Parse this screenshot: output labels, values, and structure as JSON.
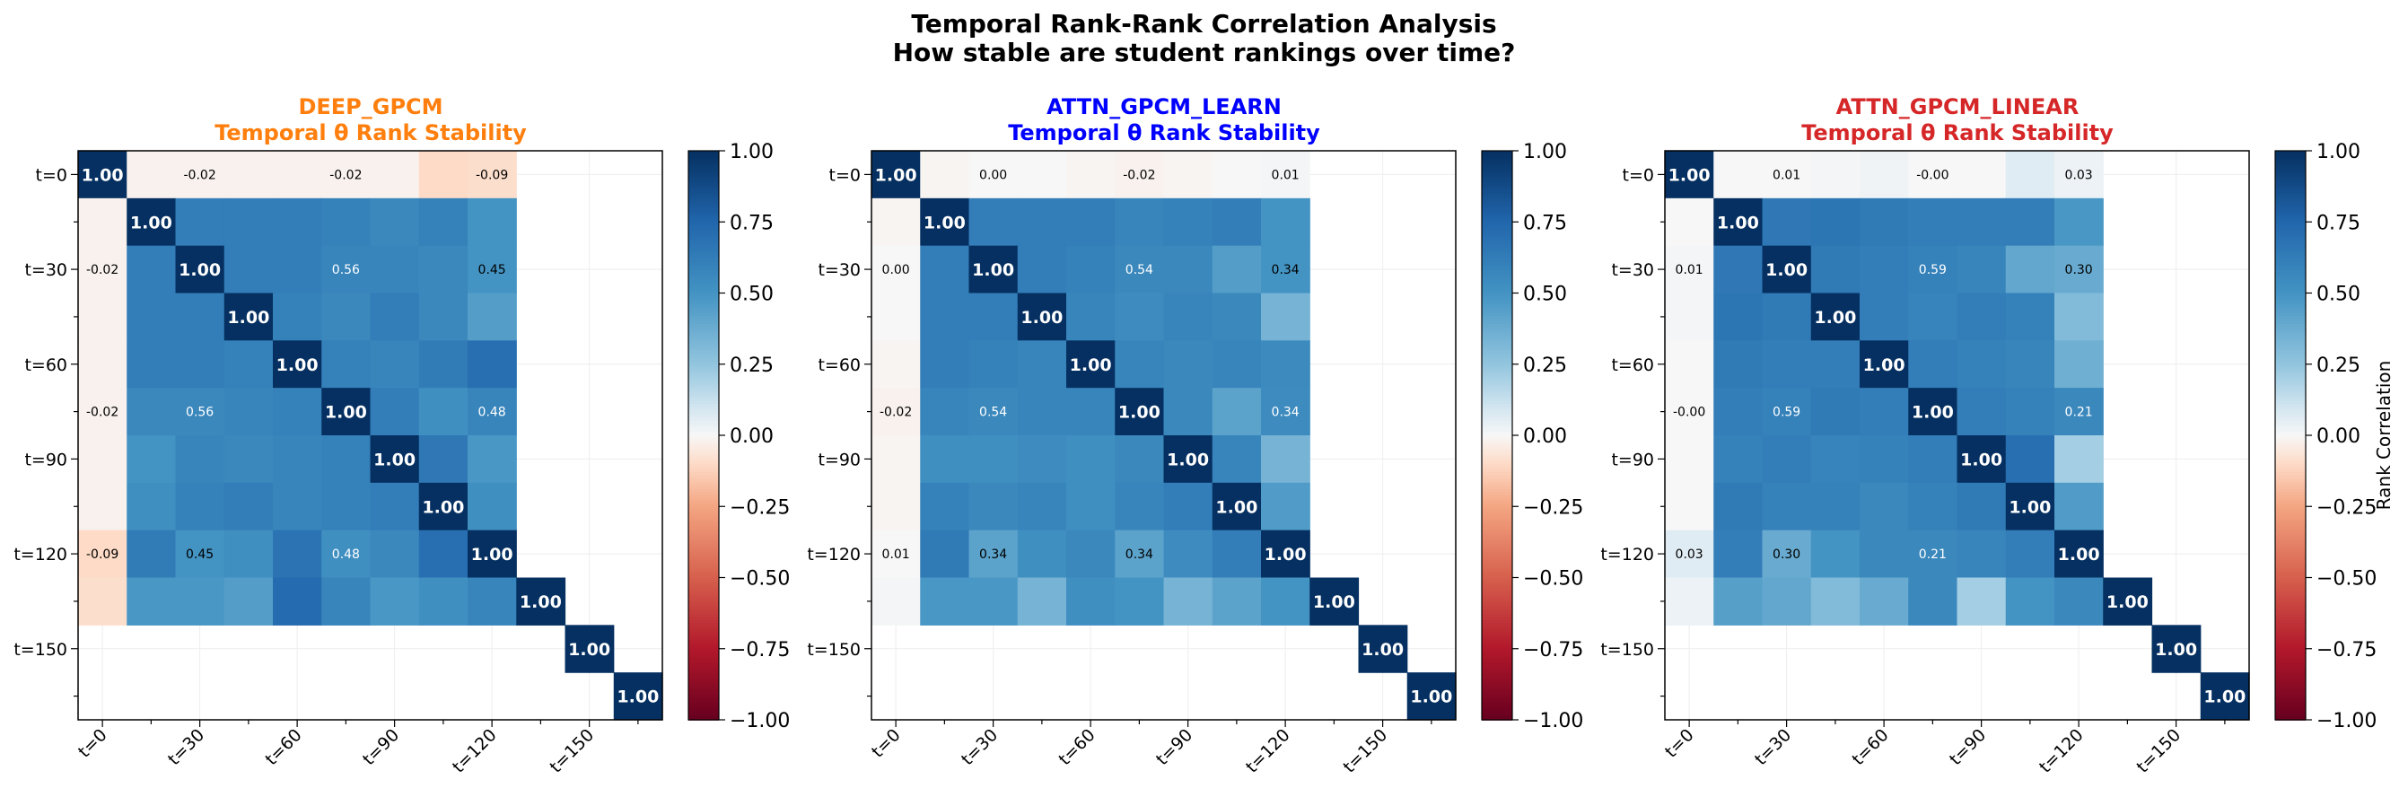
{
  "figure": {
    "title": "Temporal Rank-Rank Correlation Analysis",
    "subtitle": "How stable are student rankings over time?",
    "colorbar_label": "Rank Correlation"
  },
  "chart_data": [
    {
      "type": "heatmap",
      "model": "DEEP_GPCM",
      "subtitle": "Temporal θ Rank Stability",
      "title_color": "#ff7f0e",
      "colormap": "RdBu",
      "vmin": -1.0,
      "vmax": 1.0,
      "colorbar_ticks": [
        "1.00",
        "0.75",
        "0.50",
        "0.25",
        "0.00",
        "−0.25",
        "−0.50",
        "−0.75",
        "−1.00"
      ],
      "tick_labels": [
        "t=0",
        "t=30",
        "t=60",
        "t=90",
        "t=120",
        "t=150"
      ],
      "labeled_cells": [
        [
          0,
          2,
          "-0.02"
        ],
        [
          0,
          5,
          "-0.02"
        ],
        [
          0,
          8,
          "-0.09"
        ],
        [
          2,
          0,
          "-0.02"
        ],
        [
          2,
          5,
          "0.56"
        ],
        [
          2,
          8,
          "0.45"
        ],
        [
          5,
          0,
          "-0.02"
        ],
        [
          5,
          2,
          "0.56"
        ],
        [
          5,
          8,
          "0.48"
        ],
        [
          8,
          0,
          "-0.09"
        ],
        [
          8,
          2,
          "0.45"
        ],
        [
          8,
          5,
          "0.48"
        ]
      ],
      "matrix": [
        [
          1.0,
          -0.02,
          -0.02,
          -0.02,
          -0.02,
          -0.02,
          -0.02,
          -0.1,
          -0.09,
          null,
          null,
          null
        ],
        [
          -0.02,
          1.0,
          0.62,
          0.62,
          0.62,
          0.6,
          0.56,
          0.6,
          0.5,
          null,
          null,
          null
        ],
        [
          -0.02,
          0.62,
          1.0,
          0.62,
          0.62,
          0.58,
          0.58,
          0.56,
          0.5,
          null,
          null,
          null
        ],
        [
          -0.02,
          0.62,
          0.62,
          1.0,
          0.6,
          0.56,
          0.62,
          0.56,
          0.45,
          null,
          null,
          null
        ],
        [
          -0.02,
          0.62,
          0.62,
          0.6,
          1.0,
          0.6,
          0.58,
          0.63,
          0.7,
          null,
          null,
          null
        ],
        [
          -0.02,
          0.56,
          0.56,
          0.58,
          0.6,
          1.0,
          0.62,
          0.52,
          0.58,
          null,
          null,
          null
        ],
        [
          -0.02,
          0.5,
          0.58,
          0.56,
          0.58,
          0.6,
          1.0,
          0.65,
          0.48,
          null,
          null,
          null
        ],
        [
          -0.02,
          0.52,
          0.6,
          0.62,
          0.58,
          0.6,
          0.62,
          1.0,
          0.52,
          null,
          null,
          null
        ],
        [
          -0.1,
          0.63,
          0.5,
          0.52,
          0.68,
          0.52,
          0.56,
          0.7,
          1.0,
          null,
          null,
          null
        ],
        [
          -0.09,
          0.48,
          0.48,
          0.45,
          0.72,
          0.58,
          0.48,
          0.52,
          0.58,
          1.0,
          null,
          null
        ],
        [
          null,
          null,
          null,
          null,
          null,
          null,
          null,
          null,
          null,
          null,
          1.0,
          null
        ],
        [
          null,
          null,
          null,
          null,
          null,
          null,
          null,
          null,
          null,
          null,
          null,
          1.0
        ]
      ]
    },
    {
      "type": "heatmap",
      "model": "ATTN_GPCM_LEARN",
      "subtitle": "Temporal θ Rank Stability",
      "title_color": "#0000ff",
      "colormap": "RdBu",
      "vmin": -1.0,
      "vmax": 1.0,
      "colorbar_ticks": [
        "1.00",
        "0.75",
        "0.50",
        "0.25",
        "0.00",
        "−0.25",
        "−0.50",
        "−0.75",
        "−1.00"
      ],
      "tick_labels": [
        "t=0",
        "t=30",
        "t=60",
        "t=90",
        "t=120",
        "t=150"
      ],
      "labeled_cells": [
        [
          0,
          2,
          "0.00"
        ],
        [
          0,
          5,
          "-0.02"
        ],
        [
          0,
          8,
          "0.01"
        ],
        [
          2,
          0,
          "0.00"
        ],
        [
          2,
          5,
          "0.54"
        ],
        [
          2,
          8,
          "0.34"
        ],
        [
          5,
          0,
          "-0.02"
        ],
        [
          5,
          2,
          "0.54"
        ],
        [
          5,
          8,
          "0.34"
        ],
        [
          8,
          0,
          "0.01"
        ],
        [
          8,
          2,
          "0.34"
        ],
        [
          8,
          5,
          "0.34"
        ]
      ],
      "matrix": [
        [
          1.0,
          -0.01,
          0.0,
          0.0,
          -0.01,
          -0.02,
          -0.01,
          0.0,
          0.01,
          null,
          null,
          null
        ],
        [
          -0.01,
          1.0,
          0.62,
          0.62,
          0.62,
          0.58,
          0.6,
          0.62,
          0.5,
          null,
          null,
          null
        ],
        [
          0.0,
          0.62,
          1.0,
          0.62,
          0.6,
          0.56,
          0.56,
          0.45,
          0.5,
          null,
          null,
          null
        ],
        [
          0.0,
          0.62,
          0.62,
          1.0,
          0.58,
          0.54,
          0.58,
          0.56,
          0.34,
          null,
          null,
          null
        ],
        [
          -0.01,
          0.62,
          0.6,
          0.58,
          1.0,
          0.58,
          0.56,
          0.58,
          0.55,
          null,
          null,
          null
        ],
        [
          -0.02,
          0.58,
          0.56,
          0.58,
          0.58,
          1.0,
          0.56,
          0.42,
          0.54,
          null,
          null,
          null
        ],
        [
          -0.01,
          0.52,
          0.52,
          0.54,
          0.52,
          0.56,
          1.0,
          0.58,
          0.34,
          null,
          null,
          null
        ],
        [
          -0.01,
          0.6,
          0.56,
          0.58,
          0.52,
          0.58,
          0.62,
          1.0,
          0.46,
          null,
          null,
          null
        ],
        [
          0.0,
          0.64,
          0.42,
          0.52,
          0.56,
          0.42,
          0.54,
          0.62,
          1.0,
          null,
          null,
          null
        ],
        [
          0.01,
          0.48,
          0.48,
          0.34,
          0.52,
          0.5,
          0.34,
          0.42,
          0.5,
          1.0,
          null,
          null
        ],
        [
          null,
          null,
          null,
          null,
          null,
          null,
          null,
          null,
          null,
          null,
          1.0,
          null
        ],
        [
          null,
          null,
          null,
          null,
          null,
          null,
          null,
          null,
          null,
          null,
          null,
          1.0
        ]
      ]
    },
    {
      "type": "heatmap",
      "model": "ATTN_GPCM_LINEAR",
      "subtitle": "Temporal θ Rank Stability",
      "title_color": "#d62728",
      "colormap": "RdBu",
      "vmin": -1.0,
      "vmax": 1.0,
      "colorbar_ticks": [
        "1.00",
        "0.75",
        "0.50",
        "0.25",
        "0.00",
        "−0.25",
        "−0.50",
        "−0.75",
        "−1.00"
      ],
      "tick_labels": [
        "t=0",
        "t=30",
        "t=60",
        "t=90",
        "t=120",
        "t=150"
      ],
      "labeled_cells": [
        [
          0,
          2,
          "0.01"
        ],
        [
          0,
          5,
          "-0.00"
        ],
        [
          0,
          8,
          "0.03"
        ],
        [
          2,
          0,
          "0.01"
        ],
        [
          2,
          5,
          "0.59"
        ],
        [
          2,
          8,
          "0.30"
        ],
        [
          5,
          0,
          "-0.00"
        ],
        [
          5,
          2,
          "0.59"
        ],
        [
          5,
          8,
          "0.21"
        ],
        [
          8,
          0,
          "0.03"
        ],
        [
          8,
          2,
          "0.30"
        ],
        [
          8,
          5,
          "0.21"
        ]
      ],
      "matrix": [
        [
          1.0,
          0.0,
          0.0,
          0.01,
          0.02,
          0.0,
          0.0,
          0.06,
          0.03,
          null,
          null,
          null
        ],
        [
          0.0,
          1.0,
          0.65,
          0.66,
          0.64,
          0.62,
          0.62,
          0.62,
          0.48,
          null,
          null,
          null
        ],
        [
          0.01,
          0.65,
          1.0,
          0.64,
          0.62,
          0.6,
          0.58,
          0.4,
          0.38,
          null,
          null,
          null
        ],
        [
          0.01,
          0.66,
          0.64,
          1.0,
          0.62,
          0.59,
          0.62,
          0.6,
          0.3,
          null,
          null,
          null
        ],
        [
          0.0,
          0.64,
          0.62,
          0.62,
          1.0,
          0.62,
          0.6,
          0.58,
          0.36,
          null,
          null,
          null
        ],
        [
          0.0,
          0.62,
          0.6,
          0.64,
          0.62,
          1.0,
          0.62,
          0.6,
          0.56,
          null,
          null,
          null
        ],
        [
          0.0,
          0.6,
          0.62,
          0.59,
          0.6,
          0.62,
          1.0,
          0.7,
          0.21,
          null,
          null,
          null
        ],
        [
          0.0,
          0.64,
          0.6,
          0.6,
          0.56,
          0.6,
          0.64,
          1.0,
          0.46,
          null,
          null,
          null
        ],
        [
          0.06,
          0.62,
          0.38,
          0.5,
          0.56,
          0.56,
          0.58,
          0.62,
          1.0,
          null,
          null,
          null
        ],
        [
          0.03,
          0.44,
          0.4,
          0.3,
          0.38,
          0.56,
          0.21,
          0.5,
          0.56,
          1.0,
          null,
          null
        ],
        [
          null,
          null,
          null,
          null,
          null,
          null,
          null,
          null,
          null,
          null,
          1.0,
          null
        ],
        [
          null,
          null,
          null,
          null,
          null,
          null,
          null,
          null,
          null,
          null,
          null,
          1.0
        ]
      ]
    }
  ]
}
